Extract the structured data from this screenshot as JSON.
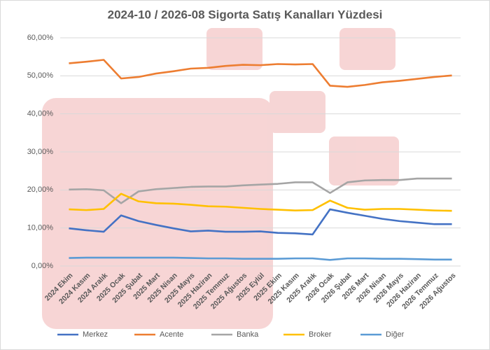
{
  "chart_data": {
    "type": "line",
    "title": "2024-10 / 2026-08 Sigorta Satış Kanalları Yüzdesi",
    "categories": [
      "2024 Ekim",
      "2024 Kasım",
      "2024 Aralık",
      "2025 Ocak",
      "2025 Şubat",
      "2025 Mart",
      "2025 Nisan",
      "2025 Mayıs",
      "2025 Haziran",
      "2025 Temmuz",
      "2025 Ağustos",
      "2025 Eylül",
      "2025 Ekim",
      "2025 Kasım",
      "2025 Aralık",
      "2026 Ocak",
      "2026 Şubat",
      "2026 Mart",
      "2026 Nisan",
      "2026 Mayıs",
      "2026 Haziran",
      "2026 Temmuz",
      "2026 Ağustos"
    ],
    "series": [
      {
        "name": "Merkez",
        "color": "#4472c4",
        "values": [
          9.9,
          9.4,
          9.0,
          13.3,
          11.8,
          10.8,
          9.9,
          9.1,
          9.3,
          9.0,
          9.0,
          9.1,
          8.7,
          8.6,
          8.3,
          14.9,
          14.0,
          13.2,
          12.4,
          11.8,
          11.4,
          11.0,
          11.0
        ]
      },
      {
        "name": "Acente",
        "color": "#ed7d31",
        "values": [
          53.3,
          53.7,
          54.2,
          49.3,
          49.7,
          50.6,
          51.2,
          51.9,
          52.1,
          52.6,
          52.9,
          52.8,
          53.1,
          53.0,
          53.1,
          47.4,
          47.1,
          47.6,
          48.3,
          48.7,
          49.2,
          49.7,
          50.1
        ]
      },
      {
        "name": "Banka",
        "color": "#a5a5a5",
        "values": [
          20.1,
          20.2,
          19.9,
          16.5,
          19.6,
          20.2,
          20.5,
          20.8,
          20.9,
          20.9,
          21.2,
          21.4,
          21.6,
          22.0,
          22.0,
          19.2,
          22.0,
          22.5,
          22.6,
          22.6,
          23.0,
          23.0,
          23.0
        ]
      },
      {
        "name": "Broker",
        "color": "#ffc000",
        "values": [
          14.9,
          14.7,
          15.0,
          19.0,
          17.0,
          16.5,
          16.4,
          16.1,
          15.7,
          15.6,
          15.3,
          15.0,
          14.8,
          14.6,
          14.7,
          17.2,
          15.3,
          14.8,
          15.0,
          15.0,
          14.8,
          14.6,
          14.5
        ]
      },
      {
        "name": "Diğer",
        "color": "#5b9bd5",
        "values": [
          2.1,
          2.2,
          2.2,
          2.2,
          2.2,
          2.2,
          2.2,
          2.1,
          2.0,
          2.0,
          1.9,
          1.9,
          1.9,
          2.0,
          2.0,
          1.6,
          2.0,
          2.0,
          1.9,
          1.9,
          1.8,
          1.7,
          1.7
        ]
      }
    ],
    "ylim": [
      0,
      60
    ],
    "yticks": [
      {
        "value": 0,
        "label": "0,00%"
      },
      {
        "value": 10,
        "label": "10,00%"
      },
      {
        "value": 20,
        "label": "20,00%"
      },
      {
        "value": 30,
        "label": "30,00%"
      },
      {
        "value": 40,
        "label": "40,00%"
      },
      {
        "value": 50,
        "label": "50,00%"
      },
      {
        "value": 60,
        "label": "60,00%"
      }
    ],
    "grid": true,
    "legend": "bottom"
  }
}
